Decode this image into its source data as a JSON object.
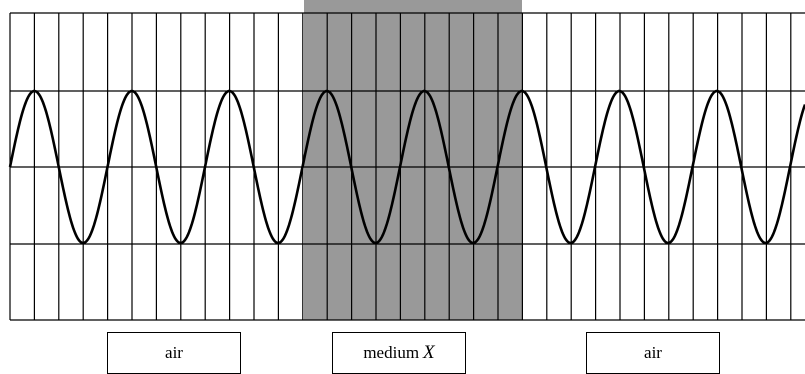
{
  "labels": {
    "left": "air",
    "middle": "medium",
    "middle_var": "X",
    "right": "air"
  },
  "colors": {
    "medium_fill": "#999999",
    "line": "#000000",
    "background": "#ffffff"
  }
}
